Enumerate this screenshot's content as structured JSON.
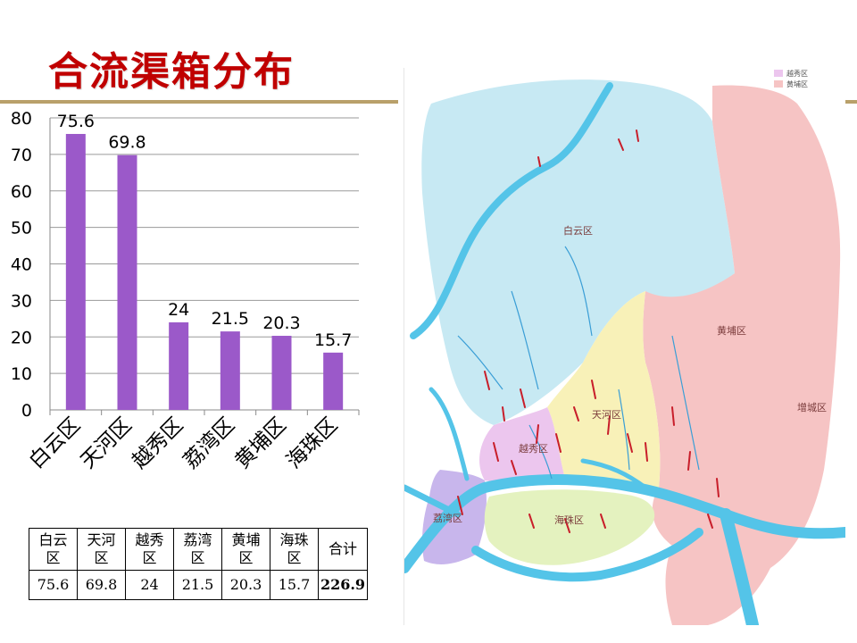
{
  "slide": {
    "title": "合流渠箱分布"
  },
  "chart_data": {
    "type": "bar",
    "categories": [
      "白云区",
      "天河区",
      "越秀区",
      "荔湾区",
      "黄埔区",
      "海珠区"
    ],
    "values": [
      75.6,
      69.8,
      24,
      21.5,
      20.3,
      15.7
    ],
    "data_labels": [
      "75.6",
      "69.8",
      "24",
      "21.5",
      "20.3",
      "15.7"
    ],
    "yticks": [
      "0",
      "10",
      "20",
      "30",
      "40",
      "50",
      "60",
      "70",
      "80"
    ],
    "ylim": [
      0,
      80
    ],
    "grid": true,
    "legend": "none",
    "bar_color": "#9b59c9"
  },
  "table": {
    "headers": [
      "白云\n区",
      "天河\n区",
      "越秀\n区",
      "荔湾\n区",
      "黄埔\n区",
      "海珠\n区",
      "合计"
    ],
    "values": [
      "75.6",
      "69.8",
      "24",
      "21.5",
      "20.3",
      "15.7",
      "226.9"
    ]
  },
  "map": {
    "district_labels": [
      "白云区",
      "黄埔区",
      "天河区",
      "越秀区",
      "荔湾区",
      "海珠区",
      "增城区"
    ],
    "legend": [
      "越秀区",
      "黄埔区"
    ],
    "colors": {
      "baiyun": "#c7e9f3",
      "huangpu": "#f6c4c4",
      "tianhe": "#f8f1b8",
      "yuexiu": "#ecc6ee",
      "liwan": "#c8b6ec",
      "haizhu": "#e4f2bf",
      "river": "#54c4e8",
      "pipes": "#c81e2a"
    }
  }
}
